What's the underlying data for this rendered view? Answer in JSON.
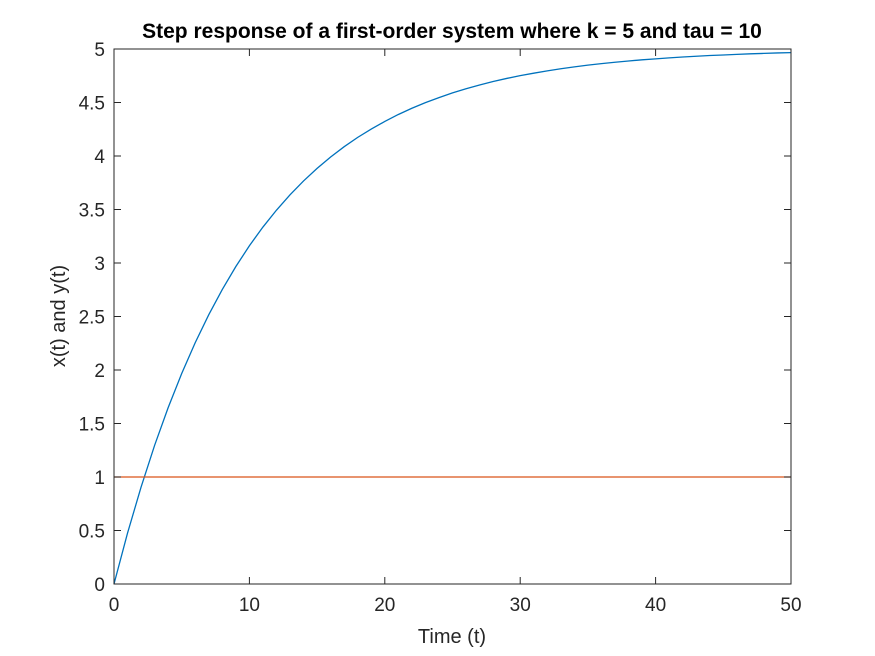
{
  "chart_data": {
    "type": "line",
    "title": "Step response of a first-order system where k = 5 and tau = 10",
    "xlabel": "Time (t)",
    "ylabel": "x(t) and y(t)",
    "xlim": [
      0,
      50
    ],
    "ylim": [
      0,
      5
    ],
    "x_ticks": [
      "0",
      "10",
      "20",
      "30",
      "40",
      "50"
    ],
    "y_ticks": [
      "0",
      "0.5",
      "1",
      "1.5",
      "2",
      "2.5",
      "3",
      "3.5",
      "4",
      "4.5",
      "5"
    ],
    "grid": false,
    "legend": "none",
    "series": [
      {
        "color": "#0072BD",
        "x": [
          0,
          1,
          2,
          3,
          4,
          5,
          6,
          7,
          8,
          9,
          10,
          11,
          12,
          13,
          14,
          15,
          16,
          17,
          18,
          19,
          20,
          21,
          22,
          23,
          24,
          25,
          26,
          27,
          28,
          29,
          30,
          31,
          32,
          33,
          34,
          35,
          36,
          37,
          38,
          39,
          40,
          41,
          42,
          43,
          44,
          45,
          46,
          47,
          48,
          49,
          50
        ],
        "values": [
          0,
          0.476,
          0.906,
          1.296,
          1.648,
          1.967,
          2.256,
          2.517,
          2.753,
          2.967,
          3.161,
          3.336,
          3.494,
          3.637,
          3.767,
          3.884,
          3.991,
          4.087,
          4.174,
          4.252,
          4.323,
          4.388,
          4.446,
          4.499,
          4.546,
          4.59,
          4.629,
          4.664,
          4.696,
          4.725,
          4.751,
          4.774,
          4.796,
          4.815,
          4.833,
          4.849,
          4.863,
          4.876,
          4.888,
          4.899,
          4.908,
          4.917,
          4.925,
          4.932,
          4.939,
          4.944,
          4.95,
          4.955,
          4.959,
          4.963,
          4.966
        ]
      },
      {
        "color": "#D95319",
        "x": [
          0,
          50
        ],
        "values": [
          1,
          1
        ]
      }
    ]
  }
}
